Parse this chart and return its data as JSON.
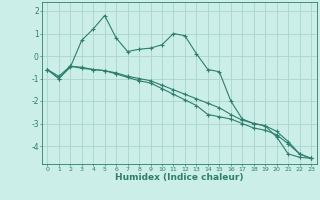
{
  "title": "",
  "xlabel": "Humidex (Indice chaleur)",
  "ylabel": "",
  "bg_color": "#cceee8",
  "line_color": "#2e7d6e",
  "grid_color": "#aad4cc",
  "xlim": [
    -0.5,
    23.5
  ],
  "ylim": [
    -4.8,
    2.4
  ],
  "yticks": [
    2,
    1,
    0,
    -1,
    -2,
    -3,
    -4
  ],
  "xticks": [
    0,
    1,
    2,
    3,
    4,
    5,
    6,
    7,
    8,
    9,
    10,
    11,
    12,
    13,
    14,
    15,
    16,
    17,
    18,
    19,
    20,
    21,
    22,
    23
  ],
  "series": [
    {
      "x": [
        0,
        1,
        2,
        3,
        4,
        5,
        6,
        7,
        8,
        9,
        10,
        11,
        12,
        13,
        14,
        15,
        16,
        17,
        18,
        19,
        20,
        21,
        22,
        23
      ],
      "y": [
        -0.6,
        -1.0,
        -0.5,
        0.7,
        1.2,
        1.8,
        0.8,
        0.2,
        0.3,
        0.35,
        0.5,
        1.0,
        0.9,
        0.1,
        -0.6,
        -0.7,
        -2.0,
        -2.8,
        -3.0,
        -3.1,
        -3.6,
        -4.35,
        -4.5,
        -4.55
      ]
    },
    {
      "x": [
        0,
        1,
        2,
        3,
        4,
        5,
        6,
        7,
        8,
        9,
        10,
        11,
        12,
        13,
        14,
        15,
        16,
        17,
        18,
        19,
        20,
        21,
        22,
        23
      ],
      "y": [
        -0.6,
        -1.0,
        -0.45,
        -0.5,
        -0.6,
        -0.65,
        -0.75,
        -0.9,
        -1.0,
        -1.1,
        -1.3,
        -1.5,
        -1.7,
        -1.9,
        -2.1,
        -2.3,
        -2.6,
        -2.85,
        -3.0,
        -3.1,
        -3.35,
        -3.8,
        -4.35,
        -4.55
      ]
    },
    {
      "x": [
        0,
        1,
        2,
        3,
        4,
        5,
        6,
        7,
        8,
        9,
        10,
        11,
        12,
        13,
        14,
        15,
        16,
        17,
        18,
        19,
        20,
        21,
        22,
        23
      ],
      "y": [
        -0.6,
        -0.9,
        -0.45,
        -0.55,
        -0.6,
        -0.65,
        -0.8,
        -0.95,
        -1.1,
        -1.2,
        -1.45,
        -1.7,
        -1.95,
        -2.2,
        -2.6,
        -2.7,
        -2.8,
        -3.0,
        -3.2,
        -3.3,
        -3.5,
        -3.9,
        -4.35,
        -4.55
      ]
    }
  ]
}
